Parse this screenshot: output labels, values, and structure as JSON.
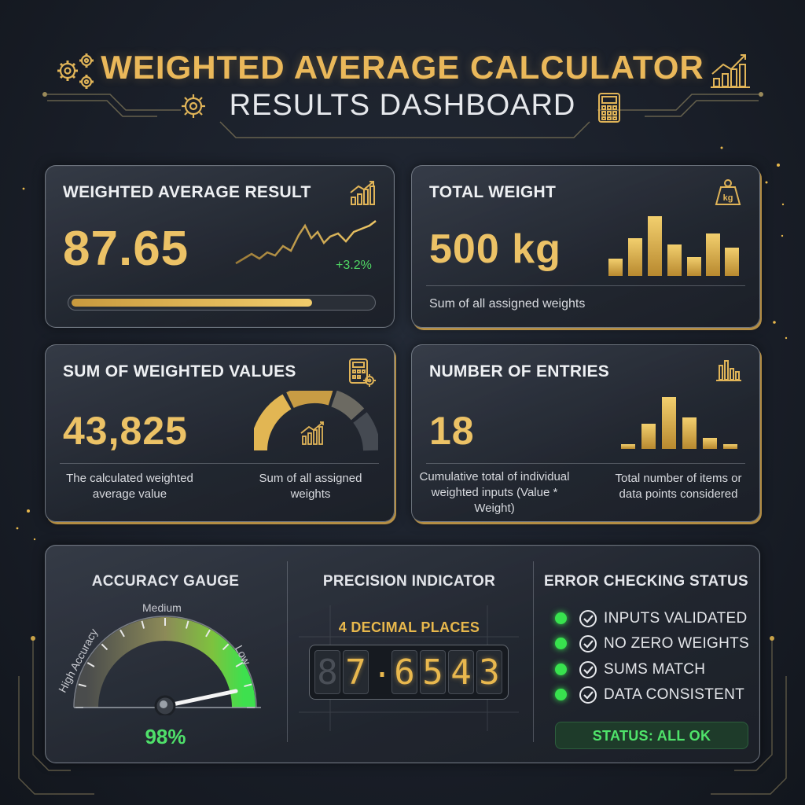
{
  "header": {
    "title": "WEIGHTED AVERAGE CALCULATOR",
    "subtitle": "RESULTS DASHBOARD",
    "icons": [
      "gears-icon",
      "gear-icon",
      "bar-chart-icon",
      "calculator-icon"
    ]
  },
  "cards": {
    "weighted_average": {
      "title": "WEIGHTED AVERAGE RESULT",
      "value": "87.65",
      "change": "+3.2%",
      "progress": 0.8,
      "icon": "bar-chart-trend-icon"
    },
    "total_weight": {
      "title": "TOTAL WEIGHT",
      "value": "500 kg",
      "caption": "Sum of all assigned weights",
      "icon": "kg-weight-icon"
    },
    "sum_weighted": {
      "title": "SUM OF WEIGHTED VALUES",
      "value": "43,825",
      "caption_left": "The calculated weighted average value",
      "caption_right": "Sum of all assigned weights",
      "icon": "calculator-gear-icon"
    },
    "entries": {
      "title": "NUMBER OF ENTRIES",
      "value": "18",
      "caption_left": "Cumulative total of individual weighted inputs (Value * Weight)",
      "caption_right": "Total number of items or data points considered",
      "icon": "bar-chart-icon"
    }
  },
  "accuracy": {
    "title": "ACCURACY GAUGE",
    "label_high": "High Accuracy",
    "label_medium": "Medium",
    "label_low": "Low",
    "value": "98%",
    "level": 0.98
  },
  "precision": {
    "title": "PRECISION INDICATOR",
    "label": "4 DECIMAL PLACES",
    "digits": [
      "8",
      "7",
      ".",
      "6",
      "5",
      "4",
      "3"
    ]
  },
  "errors": {
    "title": "ERROR CHECKING STATUS",
    "checks": [
      "INPUTS VALIDATED",
      "NO ZERO WEIGHTS",
      "SUMS MATCH",
      "DATA CONSISTENT"
    ],
    "status": "STATUS: ALL OK"
  },
  "colors": {
    "gold": "#e8bd5a",
    "green": "#38e24e",
    "background": "#1a1f29"
  }
}
